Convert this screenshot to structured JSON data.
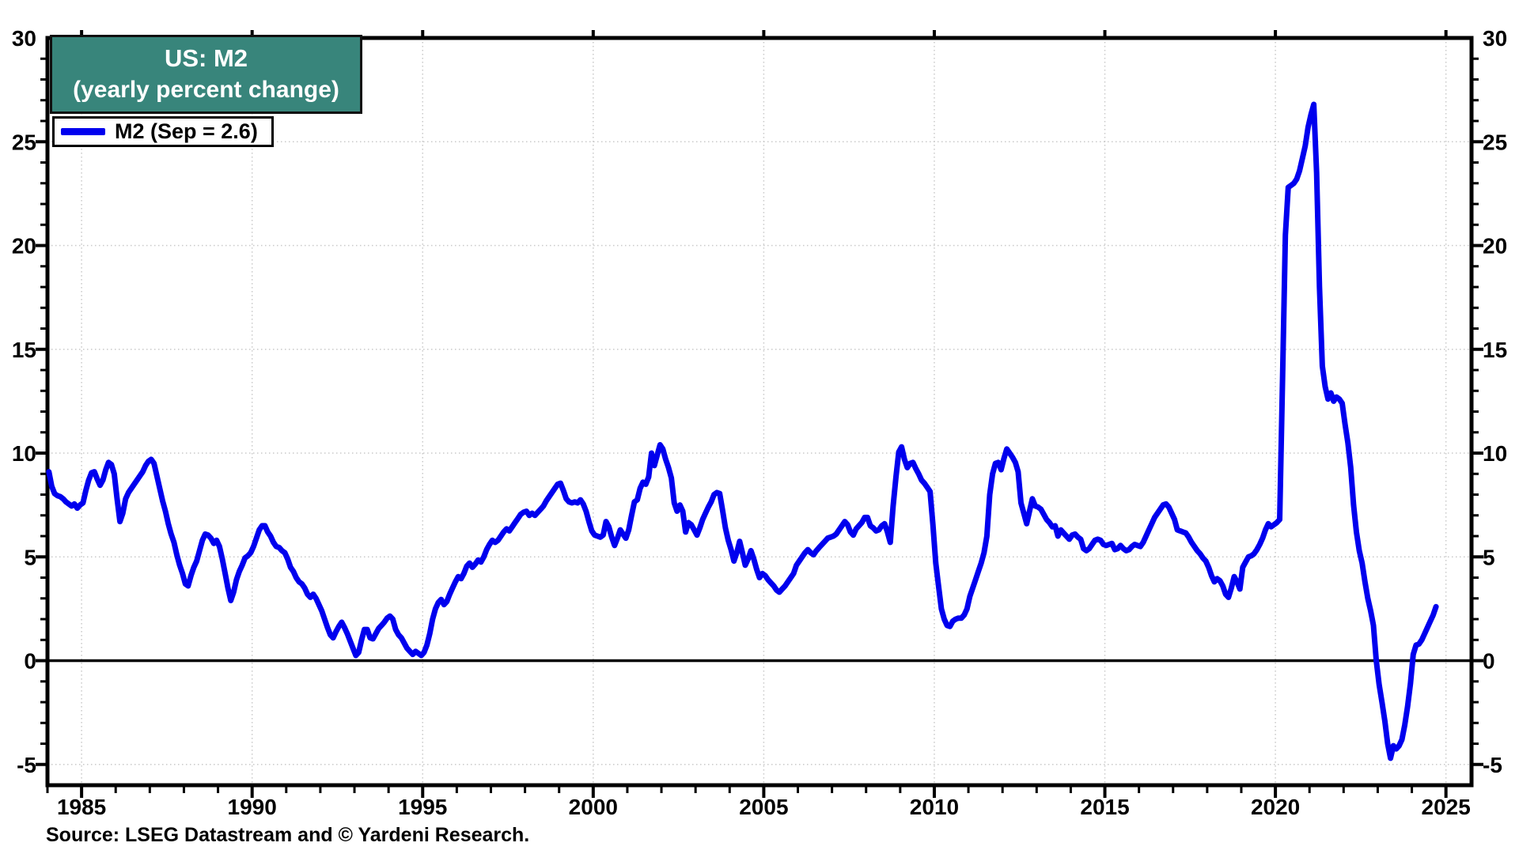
{
  "header": {
    "title": "US: M2",
    "subtitle": "(yearly percent change)"
  },
  "legend": {
    "m2_label": "M2 (Sep = 2.6)"
  },
  "footer": {
    "source": "Source: LSEG Datastream and © Yardeni Research."
  },
  "colors": {
    "line": "#0000EE",
    "title_bg": "#38857B",
    "title_text": "#FFFFFF",
    "grid": "#C9C9C9",
    "axis": "#000000",
    "zero_line": "#000000"
  },
  "chart_data": {
    "type": "line",
    "title": "US: M2",
    "subtitle": "(yearly percent change)",
    "legend_entries": [
      "M2 (Sep = 2.6)"
    ],
    "x_axis": {
      "min": 1984.0,
      "max": 2025.75,
      "major_tick_years": [
        1985,
        1990,
        1995,
        2000,
        2005,
        2010,
        2015,
        2020,
        2025
      ],
      "minor_tick_every_years": 1
    },
    "y_axis": {
      "min": -6,
      "max": 30,
      "labeled_ticks": [
        30,
        25,
        20,
        15,
        10,
        5,
        0,
        -5
      ],
      "minor_tick_every": 1,
      "zero_line": "solid"
    },
    "grid": {
      "vertical_at_major_years": true,
      "horizontal_at_labeled_ticks": true,
      "style": "dotted"
    },
    "series": [
      {
        "name": "M2",
        "unit": "percent",
        "frequency": "monthly",
        "start": "1984-01",
        "end": "2024-09",
        "last_value_label": "Sep = 2.6",
        "values": [
          9.1,
          8.4,
          8.05,
          7.95,
          7.9,
          7.8,
          7.65,
          7.55,
          7.45,
          7.55,
          7.35,
          7.5,
          7.6,
          8.2,
          8.7,
          9.05,
          9.1,
          8.75,
          8.45,
          8.7,
          9.2,
          9.55,
          9.45,
          9.0,
          7.8,
          6.7,
          7.1,
          7.8,
          8.1,
          8.3,
          8.5,
          8.7,
          8.9,
          9.1,
          9.4,
          9.6,
          9.7,
          9.5,
          8.9,
          8.3,
          7.7,
          7.2,
          6.6,
          6.1,
          5.7,
          5.1,
          4.6,
          4.2,
          3.7,
          3.6,
          4.1,
          4.5,
          4.8,
          5.3,
          5.8,
          6.1,
          6.05,
          5.9,
          5.65,
          5.8,
          5.5,
          4.9,
          4.2,
          3.5,
          2.9,
          3.3,
          3.9,
          4.3,
          4.6,
          4.95,
          5.05,
          5.2,
          5.5,
          5.9,
          6.3,
          6.5,
          6.5,
          6.2,
          6.0,
          5.7,
          5.5,
          5.45,
          5.3,
          5.2,
          4.9,
          4.5,
          4.3,
          4.0,
          3.8,
          3.7,
          3.5,
          3.2,
          3.05,
          3.2,
          3.0,
          2.7,
          2.4,
          2.0,
          1.6,
          1.25,
          1.1,
          1.4,
          1.65,
          1.85,
          1.6,
          1.3,
          0.95,
          0.6,
          0.25,
          0.4,
          1.0,
          1.5,
          1.5,
          1.1,
          1.05,
          1.3,
          1.55,
          1.7,
          1.85,
          2.05,
          2.15,
          2.0,
          1.5,
          1.25,
          1.1,
          0.85,
          0.6,
          0.45,
          0.3,
          0.45,
          0.35,
          0.25,
          0.4,
          0.75,
          1.3,
          2.0,
          2.5,
          2.8,
          2.95,
          2.7,
          2.85,
          3.2,
          3.5,
          3.8,
          4.05,
          3.95,
          4.2,
          4.55,
          4.7,
          4.5,
          4.65,
          4.85,
          4.75,
          5.0,
          5.35,
          5.6,
          5.8,
          5.7,
          5.8,
          6.0,
          6.2,
          6.35,
          6.25,
          6.45,
          6.65,
          6.85,
          7.05,
          7.15,
          7.2,
          7.0,
          7.1,
          7.0,
          7.15,
          7.3,
          7.45,
          7.7,
          7.9,
          8.1,
          8.3,
          8.5,
          8.55,
          8.2,
          7.8,
          7.65,
          7.6,
          7.65,
          7.6,
          7.75,
          7.55,
          7.2,
          6.7,
          6.25,
          6.05,
          6.0,
          5.95,
          6.05,
          6.7,
          6.45,
          5.95,
          5.55,
          5.9,
          6.3,
          6.1,
          5.9,
          6.3,
          7.0,
          7.65,
          7.75,
          8.3,
          8.6,
          8.5,
          8.85,
          10.0,
          9.4,
          9.9,
          10.4,
          10.2,
          9.7,
          9.3,
          8.8,
          7.6,
          7.2,
          7.5,
          7.2,
          6.2,
          6.65,
          6.55,
          6.3,
          6.05,
          6.4,
          6.8,
          7.1,
          7.4,
          7.65,
          8.0,
          8.1,
          8.05,
          7.25,
          6.4,
          5.8,
          5.35,
          4.8,
          5.2,
          5.75,
          5.2,
          4.6,
          4.9,
          5.3,
          4.9,
          4.4,
          4.0,
          4.2,
          4.1,
          3.9,
          3.75,
          3.6,
          3.4,
          3.3,
          3.45,
          3.6,
          3.8,
          4.0,
          4.2,
          4.6,
          4.8,
          5.0,
          5.2,
          5.35,
          5.2,
          5.1,
          5.3,
          5.45,
          5.6,
          5.75,
          5.9,
          5.95,
          6.0,
          6.1,
          6.3,
          6.5,
          6.7,
          6.55,
          6.2,
          6.05,
          6.35,
          6.5,
          6.65,
          6.9,
          6.9,
          6.5,
          6.4,
          6.25,
          6.3,
          6.5,
          6.6,
          6.2,
          5.7,
          7.45,
          8.85,
          10.05,
          10.3,
          9.7,
          9.3,
          9.5,
          9.55,
          9.25,
          9.0,
          8.7,
          8.55,
          8.35,
          8.15,
          6.55,
          4.7,
          3.6,
          2.5,
          2.0,
          1.7,
          1.65,
          1.9,
          2.0,
          2.05,
          2.05,
          2.2,
          2.5,
          3.1,
          3.5,
          3.9,
          4.3,
          4.7,
          5.2,
          6.0,
          8.0,
          9.0,
          9.5,
          9.55,
          9.2,
          9.75,
          10.2,
          10.0,
          9.8,
          9.55,
          9.1,
          7.6,
          7.1,
          6.6,
          7.2,
          7.8,
          7.45,
          7.4,
          7.3,
          7.05,
          6.8,
          6.65,
          6.45,
          6.5,
          6.0,
          6.3,
          6.15,
          6.0,
          5.85,
          6.05,
          6.1,
          5.95,
          5.85,
          5.4,
          5.3,
          5.4,
          5.6,
          5.8,
          5.85,
          5.8,
          5.6,
          5.55,
          5.6,
          5.65,
          5.35,
          5.4,
          5.55,
          5.4,
          5.3,
          5.35,
          5.5,
          5.6,
          5.55,
          5.5,
          5.7,
          6.0,
          6.3,
          6.6,
          6.9,
          7.1,
          7.3,
          7.5,
          7.55,
          7.4,
          7.1,
          6.8,
          6.3,
          6.25,
          6.2,
          6.15,
          5.95,
          5.7,
          5.5,
          5.3,
          5.15,
          4.95,
          4.8,
          4.5,
          4.1,
          3.8,
          3.95,
          3.85,
          3.6,
          3.2,
          3.05,
          3.5,
          4.05,
          3.8,
          3.45,
          4.5,
          4.75,
          5.0,
          5.05,
          5.15,
          5.35,
          5.6,
          5.9,
          6.3,
          6.6,
          6.45,
          6.55,
          6.65,
          6.8,
          13.5,
          20.5,
          22.8,
          22.9,
          23.0,
          23.2,
          23.6,
          24.2,
          24.8,
          25.7,
          26.3,
          26.8,
          23.5,
          18.0,
          14.2,
          13.2,
          12.6,
          12.9,
          12.5,
          12.7,
          12.6,
          12.4,
          11.4,
          10.5,
          9.3,
          7.5,
          6.2,
          5.3,
          4.7,
          3.8,
          3.0,
          2.4,
          1.7,
          0.0,
          -1.15,
          -2.0,
          -2.9,
          -4.0,
          -4.7,
          -4.1,
          -4.25,
          -4.1,
          -3.8,
          -3.1,
          -2.2,
          -1.1,
          0.3,
          0.75,
          0.8,
          1.0,
          1.3,
          1.6,
          1.9,
          2.2,
          2.6
        ]
      }
    ]
  }
}
